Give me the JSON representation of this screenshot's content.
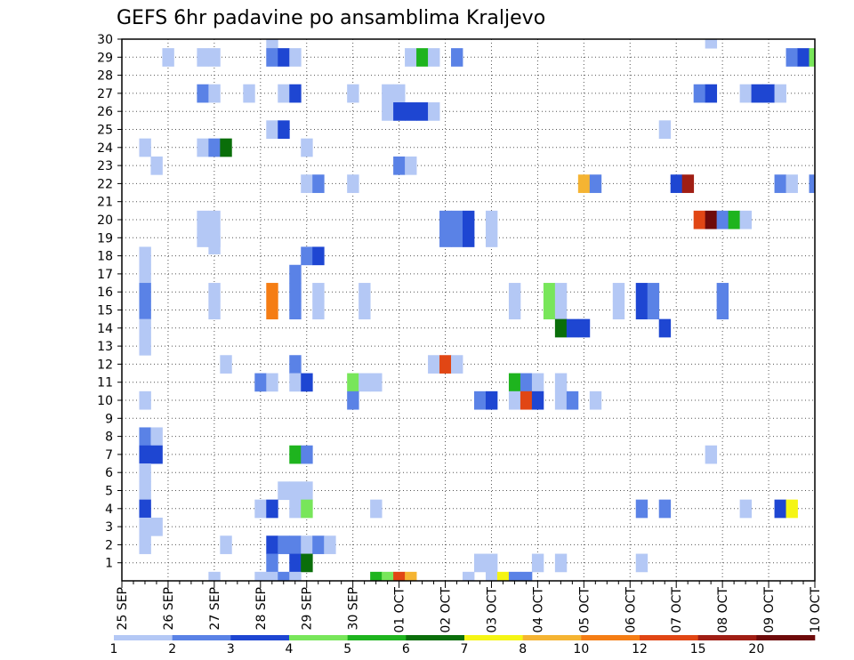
{
  "chart_data": {
    "type": "heatmap",
    "title": "GEFS 6hr padavine po ansamblima Kraljevo",
    "xlabel": "",
    "ylabel": "",
    "x_tick_labels": [
      "25 SEP",
      "26 SEP",
      "27 SEP",
      "28 SEP",
      "29 SEP",
      "30 SEP",
      "01 OCT",
      "02 OCT",
      "03 OCT",
      "04 OCT",
      "05 OCT",
      "06 OCT",
      "07 OCT",
      "08 OCT",
      "09 OCT",
      "10 OCT"
    ],
    "x_step_unit": "6h",
    "x_steps_per_day": 4,
    "x_range_steps": [
      0,
      60
    ],
    "y_tick_labels": [
      "1",
      "2",
      "3",
      "4",
      "5",
      "6",
      "7",
      "8",
      "9",
      "10",
      "11",
      "12",
      "13",
      "14",
      "15",
      "16",
      "17",
      "18",
      "19",
      "20",
      "21",
      "22",
      "23",
      "24",
      "25",
      "26",
      "27",
      "28",
      "29",
      "30"
    ],
    "y_range": [
      0,
      30
    ],
    "grid": true,
    "colorbar": {
      "colors": [
        "#b4c8f5",
        "#5a82e6",
        "#1e46d2",
        "#78e65a",
        "#1eb41e",
        "#0a6e0a",
        "#f5f514",
        "#f5b432",
        "#f57d14",
        "#e14614",
        "#a01e14",
        "#6e0a0a"
      ],
      "labels": [
        "1",
        "2",
        "3",
        "4",
        "5",
        "6",
        "7",
        "8",
        "10",
        "12",
        "15",
        "20"
      ]
    },
    "cells": [
      [
        13,
        30,
        0
      ],
      [
        51,
        30,
        0
      ],
      [
        4,
        29,
        0
      ],
      [
        7,
        29,
        0
      ],
      [
        8,
        29,
        0
      ],
      [
        13,
        29,
        1
      ],
      [
        14,
        29,
        2
      ],
      [
        15,
        29,
        0
      ],
      [
        25,
        29,
        0
      ],
      [
        26,
        29,
        4
      ],
      [
        27,
        29,
        0
      ],
      [
        29,
        29,
        1
      ],
      [
        58,
        29,
        1
      ],
      [
        59,
        29,
        2
      ],
      [
        60,
        29,
        3
      ],
      [
        7,
        27,
        1
      ],
      [
        8,
        27,
        0
      ],
      [
        11,
        27,
        0
      ],
      [
        14,
        27,
        0
      ],
      [
        15,
        27,
        2
      ],
      [
        20,
        27,
        0
      ],
      [
        23,
        27,
        0
      ],
      [
        24,
        27,
        0
      ],
      [
        50,
        27,
        1
      ],
      [
        51,
        27,
        2
      ],
      [
        54,
        27,
        0
      ],
      [
        55,
        27,
        2
      ],
      [
        56,
        27,
        2
      ],
      [
        57,
        27,
        0
      ],
      [
        23,
        26,
        0
      ],
      [
        24,
        26,
        2
      ],
      [
        25,
        26,
        2
      ],
      [
        26,
        26,
        2
      ],
      [
        27,
        26,
        0
      ],
      [
        13,
        25,
        0
      ],
      [
        14,
        25,
        2
      ],
      [
        47,
        25,
        0
      ],
      [
        2,
        24,
        0
      ],
      [
        7,
        24,
        0
      ],
      [
        8,
        24,
        1
      ],
      [
        9,
        24,
        5
      ],
      [
        16,
        24,
        0
      ],
      [
        3,
        23,
        0
      ],
      [
        24,
        23,
        1
      ],
      [
        25,
        23,
        0
      ],
      [
        16,
        22,
        0
      ],
      [
        17,
        22,
        1
      ],
      [
        20,
        22,
        0
      ],
      [
        40,
        22,
        7
      ],
      [
        41,
        22,
        1
      ],
      [
        48,
        22,
        2
      ],
      [
        49,
        22,
        10
      ],
      [
        57,
        22,
        1
      ],
      [
        58,
        22,
        0
      ],
      [
        60,
        22,
        1
      ],
      [
        7,
        20,
        0
      ],
      [
        8,
        20,
        0
      ],
      [
        28,
        20,
        1
      ],
      [
        29,
        20,
        1
      ],
      [
        30,
        20,
        2
      ],
      [
        32,
        20,
        0
      ],
      [
        50,
        20,
        9
      ],
      [
        51,
        20,
        11
      ],
      [
        52,
        20,
        1
      ],
      [
        53,
        20,
        4
      ],
      [
        54,
        20,
        0
      ],
      [
        7,
        19,
        0
      ],
      [
        8,
        19,
        0
      ],
      [
        28,
        19,
        1
      ],
      [
        29,
        19,
        1
      ],
      [
        30,
        19,
        2
      ],
      [
        32,
        19,
        0
      ],
      [
        8,
        18.6,
        0
      ],
      [
        2,
        18,
        0
      ],
      [
        16,
        18,
        1
      ],
      [
        17,
        18,
        2
      ],
      [
        2,
        17,
        0
      ],
      [
        15,
        17,
        1
      ],
      [
        2,
        16,
        1
      ],
      [
        8,
        16,
        0
      ],
      [
        13,
        16,
        8
      ],
      [
        15,
        16,
        1
      ],
      [
        17,
        16,
        0
      ],
      [
        21,
        16,
        0
      ],
      [
        34,
        16,
        0
      ],
      [
        37,
        16,
        3
      ],
      [
        38,
        16,
        0
      ],
      [
        43,
        16,
        0
      ],
      [
        45,
        16,
        2
      ],
      [
        46,
        16,
        1
      ],
      [
        52,
        16,
        1
      ],
      [
        2,
        15,
        1
      ],
      [
        8,
        15,
        0
      ],
      [
        13,
        15,
        8
      ],
      [
        15,
        15,
        1
      ],
      [
        17,
        15,
        0
      ],
      [
        21,
        15,
        0
      ],
      [
        34,
        15,
        0
      ],
      [
        37,
        15,
        3
      ],
      [
        38,
        15,
        0
      ],
      [
        43,
        15,
        0
      ],
      [
        45,
        15,
        2
      ],
      [
        46,
        15,
        1
      ],
      [
        52,
        15,
        1
      ],
      [
        2,
        14,
        0
      ],
      [
        38,
        14,
        5
      ],
      [
        39,
        14,
        2
      ],
      [
        40,
        14,
        2
      ],
      [
        47,
        14,
        2
      ],
      [
        2,
        13,
        0
      ],
      [
        9,
        12,
        0
      ],
      [
        15,
        12,
        1
      ],
      [
        27,
        12,
        0
      ],
      [
        28,
        12,
        9
      ],
      [
        29,
        12,
        0
      ],
      [
        12,
        11,
        1
      ],
      [
        13,
        11,
        0
      ],
      [
        15,
        11,
        0
      ],
      [
        16,
        11,
        2
      ],
      [
        20,
        11,
        3
      ],
      [
        21,
        11,
        0
      ],
      [
        22,
        11,
        0
      ],
      [
        34,
        11,
        4
      ],
      [
        35,
        11,
        1
      ],
      [
        36,
        11,
        0
      ],
      [
        38,
        11,
        0
      ],
      [
        2,
        10,
        0
      ],
      [
        20,
        10,
        1
      ],
      [
        31,
        10,
        1
      ],
      [
        32,
        10,
        2
      ],
      [
        34,
        10,
        0
      ],
      [
        35,
        10,
        9
      ],
      [
        36,
        10,
        2
      ],
      [
        38,
        10,
        0
      ],
      [
        39,
        10,
        1
      ],
      [
        41,
        10,
        0
      ],
      [
        2,
        8,
        1
      ],
      [
        3,
        8,
        0
      ],
      [
        2,
        7,
        2
      ],
      [
        3,
        7,
        2
      ],
      [
        15,
        7,
        4
      ],
      [
        16,
        7,
        1
      ],
      [
        51,
        7,
        0
      ],
      [
        2,
        6,
        0
      ],
      [
        2,
        5,
        0
      ],
      [
        14,
        5,
        0
      ],
      [
        15,
        5,
        0
      ],
      [
        16,
        5,
        0
      ],
      [
        2,
        4,
        2
      ],
      [
        12,
        4,
        0
      ],
      [
        13,
        4,
        2
      ],
      [
        15,
        4,
        0
      ],
      [
        16,
        4,
        3
      ],
      [
        22,
        4,
        0
      ],
      [
        45,
        4,
        1
      ],
      [
        47,
        4,
        1
      ],
      [
        54,
        4,
        0
      ],
      [
        57,
        4,
        2
      ],
      [
        58,
        4,
        6
      ],
      [
        2,
        3,
        0
      ],
      [
        3,
        3,
        0
      ],
      [
        2,
        2,
        0
      ],
      [
        9,
        2,
        0
      ],
      [
        13,
        2,
        2
      ],
      [
        14,
        2,
        1
      ],
      [
        15,
        2,
        1
      ],
      [
        16,
        2,
        0
      ],
      [
        17,
        2,
        1
      ],
      [
        18,
        2,
        0
      ],
      [
        13,
        1,
        1
      ],
      [
        15,
        1,
        2
      ],
      [
        16,
        1,
        5
      ],
      [
        31,
        1,
        0
      ],
      [
        32,
        1,
        0
      ],
      [
        36,
        1,
        0
      ],
      [
        38,
        1,
        0
      ],
      [
        45,
        1,
        0
      ],
      [
        8,
        0,
        0
      ],
      [
        12,
        0,
        0
      ],
      [
        13,
        0,
        0
      ],
      [
        14,
        0,
        1
      ],
      [
        15,
        0,
        0
      ],
      [
        22,
        0,
        4
      ],
      [
        23,
        0,
        3
      ],
      [
        24,
        0,
        9
      ],
      [
        25,
        0,
        7
      ],
      [
        30,
        0,
        0
      ],
      [
        32,
        0,
        0
      ],
      [
        33,
        0,
        6
      ],
      [
        34,
        0,
        1
      ],
      [
        35,
        0,
        1
      ]
    ]
  }
}
